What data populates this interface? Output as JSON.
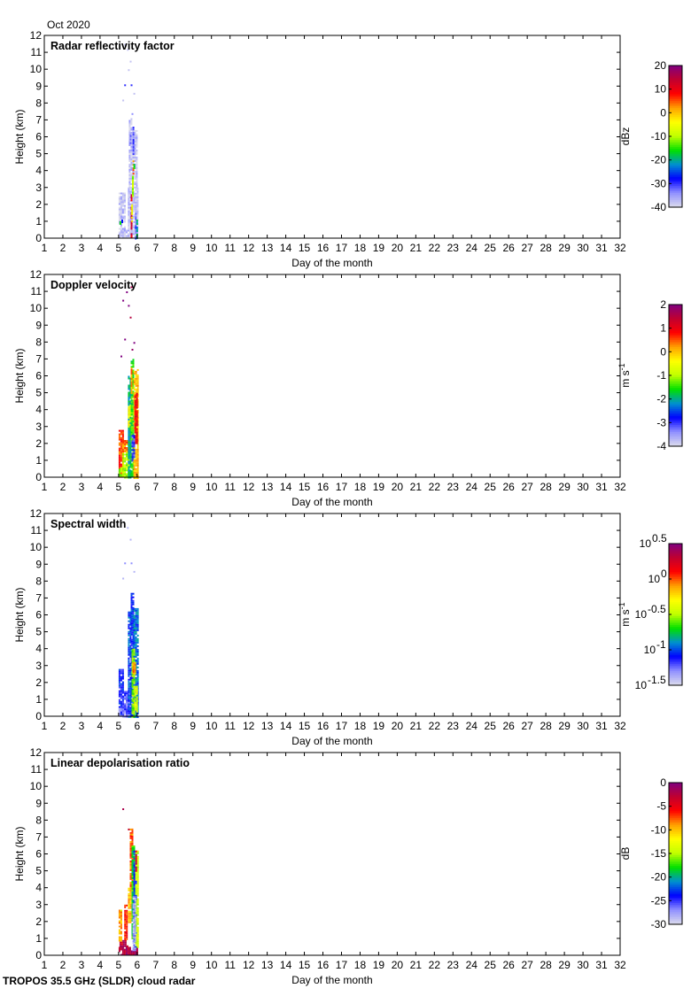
{
  "header": {
    "month": "Oct 2020"
  },
  "footer": {
    "instrument": "TROPOS 35.5 GHz (SLDR) cloud radar"
  },
  "colormap": [
    "#dcdcec",
    "#9090ff",
    "#0000ff",
    "#0090d0",
    "#00e000",
    "#c0ff00",
    "#ffff00",
    "#ffa000",
    "#ff0000",
    "#c00030",
    "#800080"
  ],
  "chart_data": [
    {
      "type": "heatmap",
      "title": "Radar reflectivity factor",
      "xlabel": "Day of the month",
      "ylabel": "Height (km)",
      "xlim": [
        1,
        32
      ],
      "ylim": [
        0,
        12
      ],
      "xticks": [
        "1",
        "2",
        "3",
        "4",
        "5",
        "6",
        "7",
        "8",
        "9",
        "10",
        "11",
        "12",
        "13",
        "14",
        "15",
        "16",
        "17",
        "18",
        "19",
        "20",
        "21",
        "22",
        "23",
        "24",
        "25",
        "26",
        "27",
        "28",
        "29",
        "30",
        "31",
        "32"
      ],
      "yticks": [
        "0",
        "1",
        "2",
        "3",
        "4",
        "5",
        "6",
        "7",
        "8",
        "9",
        "10",
        "11",
        "12"
      ],
      "colorbar": {
        "unit": "dBz",
        "unit_sup": "",
        "range": [
          -40,
          20
        ],
        "ticks": [
          {
            "v": 20,
            "label": "20"
          },
          {
            "v": 10,
            "label": "10"
          },
          {
            "v": 0,
            "label": "0"
          },
          {
            "v": -10,
            "label": "-10"
          },
          {
            "v": -20,
            "label": "-20"
          },
          {
            "v": -30,
            "label": "-30"
          },
          {
            "v": -40,
            "label": "-40"
          }
        ]
      },
      "cells": [
        [
          5.0,
          6.0,
          0,
          0.5,
          -38
        ],
        [
          5.0,
          5.3,
          0.5,
          2.7,
          -38
        ],
        [
          5.5,
          6.0,
          0.5,
          3.0,
          -38
        ],
        [
          5.55,
          6.0,
          3.0,
          6.4,
          -38
        ],
        [
          5.55,
          5.65,
          6.4,
          7.1,
          -38
        ],
        [
          5.65,
          5.7,
          0,
          2.6,
          12
        ],
        [
          5.68,
          5.74,
          1.0,
          2.0,
          -5
        ],
        [
          5.72,
          5.78,
          2.5,
          3.8,
          -10
        ],
        [
          5.75,
          5.8,
          3.8,
          4.6,
          3
        ],
        [
          5.8,
          5.85,
          4.0,
          4.4,
          -18
        ],
        [
          5.75,
          5.8,
          5.0,
          6.6,
          -32
        ],
        [
          5.6,
          5.65,
          5.6,
          6.2,
          -34
        ],
        [
          5.88,
          5.93,
          0,
          1.6,
          -32
        ],
        [
          5.95,
          6.0,
          0,
          1.1,
          -20
        ],
        [
          5.15,
          5.2,
          0.9,
          1.1,
          -30
        ],
        [
          5.05,
          5.1,
          0.8,
          1.0,
          -18
        ]
      ],
      "points": [
        [
          5.3,
          9.1,
          -30
        ],
        [
          5.65,
          9.1,
          -30
        ],
        [
          5.6,
          10.5,
          -38
        ],
        [
          5.2,
          8.2,
          -38
        ],
        [
          5.45,
          11.2,
          -38
        ],
        [
          5.7,
          7.4,
          -34
        ],
        [
          5.5,
          10.0,
          -38
        ],
        [
          5.8,
          8.6,
          -38
        ],
        [
          5.3,
          11.5,
          -38
        ]
      ]
    },
    {
      "type": "heatmap",
      "title": "Doppler velocity",
      "xlabel": "Day of the month",
      "ylabel": "Height (km)",
      "xlim": [
        1,
        32
      ],
      "ylim": [
        0,
        12
      ],
      "xticks": [
        "1",
        "2",
        "3",
        "4",
        "5",
        "6",
        "7",
        "8",
        "9",
        "10",
        "11",
        "12",
        "13",
        "14",
        "15",
        "16",
        "17",
        "18",
        "19",
        "20",
        "21",
        "22",
        "23",
        "24",
        "25",
        "26",
        "27",
        "28",
        "29",
        "30",
        "31",
        "32"
      ],
      "yticks": [
        "0",
        "1",
        "2",
        "3",
        "4",
        "5",
        "6",
        "7",
        "8",
        "9",
        "10",
        "11",
        "12"
      ],
      "colorbar": {
        "unit": "m s",
        "unit_sup": "-1",
        "range": [
          -4,
          2
        ],
        "ticks": [
          {
            "v": 2,
            "label": "2"
          },
          {
            "v": 1,
            "label": "1"
          },
          {
            "v": 0,
            "label": "0"
          },
          {
            "v": -1,
            "label": "-1"
          },
          {
            "v": -2,
            "label": "-2"
          },
          {
            "v": -3,
            "label": "-3"
          },
          {
            "v": -4,
            "label": "-4"
          }
        ]
      },
      "cells": [
        [
          5.0,
          5.2,
          0,
          2.8,
          0.6
        ],
        [
          5.0,
          5.2,
          0,
          0.6,
          -1.2
        ],
        [
          5.2,
          5.5,
          0,
          1.5,
          -1.0
        ],
        [
          5.2,
          5.5,
          1.5,
          2.2,
          0.3
        ],
        [
          5.5,
          5.65,
          0,
          6.0,
          -2.0
        ],
        [
          5.5,
          5.6,
          3.0,
          4.3,
          -0.5
        ],
        [
          5.65,
          5.8,
          0,
          7.0,
          -1.5
        ],
        [
          5.65,
          5.72,
          5.0,
          6.5,
          0.2
        ],
        [
          5.8,
          6.0,
          0,
          6.4,
          0.0
        ],
        [
          5.85,
          6.0,
          2.0,
          5.0,
          0.9
        ],
        [
          5.7,
          5.8,
          1.0,
          2.5,
          -3.0
        ]
      ],
      "points": [
        [
          5.2,
          10.5,
          2
        ],
        [
          5.4,
          11.0,
          2
        ],
        [
          5.6,
          9.5,
          1.5
        ],
        [
          5.3,
          8.2,
          2
        ],
        [
          5.7,
          7.6,
          1.8
        ],
        [
          5.5,
          10.2,
          2
        ],
        [
          5.8,
          8.0,
          2
        ],
        [
          5.65,
          11.3,
          1.6
        ],
        [
          5.1,
          7.2,
          2
        ]
      ]
    },
    {
      "type": "heatmap",
      "title": "Spectral width",
      "xlabel": "Day of the month",
      "ylabel": "Height (km)",
      "xlim": [
        1,
        32
      ],
      "ylim": [
        0,
        12
      ],
      "xticks": [
        "1",
        "2",
        "3",
        "4",
        "5",
        "6",
        "7",
        "8",
        "9",
        "10",
        "11",
        "12",
        "13",
        "14",
        "15",
        "16",
        "17",
        "18",
        "19",
        "20",
        "21",
        "22",
        "23",
        "24",
        "25",
        "26",
        "27",
        "28",
        "29",
        "30",
        "31",
        "32"
      ],
      "yticks": [
        "0",
        "1",
        "2",
        "3",
        "4",
        "5",
        "6",
        "7",
        "8",
        "9",
        "10",
        "11",
        "12"
      ],
      "colorbar": {
        "unit": "m s",
        "unit_sup": "-1",
        "range": [
          -1.5,
          0.5
        ],
        "log_base": "10",
        "ticks": [
          {
            "v": 0.5,
            "label": "10",
            "sup": "0.5"
          },
          {
            "v": 0,
            "label": "10",
            "sup": "0"
          },
          {
            "v": -0.5,
            "label": "10",
            "sup": "-0.5"
          },
          {
            "v": -1,
            "label": "10",
            "sup": "-1"
          },
          {
            "v": -1.5,
            "label": "10",
            "sup": "-1.5"
          }
        ]
      },
      "cells": [
        [
          5.0,
          5.2,
          0,
          2.8,
          -1.1
        ],
        [
          5.0,
          5.3,
          0,
          0.5,
          -1.4
        ],
        [
          5.2,
          5.5,
          0,
          1.5,
          -1.2
        ],
        [
          5.5,
          5.65,
          0,
          6.2,
          -1.0
        ],
        [
          5.65,
          5.8,
          0,
          7.3,
          -1.05
        ],
        [
          5.8,
          6.0,
          0,
          6.4,
          -0.95
        ],
        [
          5.7,
          5.85,
          0,
          4.0,
          -0.55
        ],
        [
          5.85,
          6.0,
          0.3,
          1.8,
          -0.4
        ],
        [
          5.75,
          5.85,
          2.5,
          3.2,
          -0.1
        ]
      ],
      "points": [
        [
          5.3,
          9.1,
          -1.3
        ],
        [
          5.65,
          9.1,
          -1.3
        ],
        [
          5.6,
          10.5,
          -1.4
        ],
        [
          5.2,
          8.2,
          -1.4
        ],
        [
          5.45,
          11.2,
          -1.4
        ],
        [
          5.8,
          8.6,
          -1.4
        ]
      ]
    },
    {
      "type": "heatmap",
      "title": "Linear depolarisation ratio",
      "xlabel": "Day of the month",
      "ylabel": "Height (km)",
      "xlim": [
        1,
        32
      ],
      "ylim": [
        0,
        12
      ],
      "xticks": [
        "1",
        "2",
        "3",
        "4",
        "5",
        "6",
        "7",
        "8",
        "9",
        "10",
        "11",
        "12",
        "13",
        "14",
        "15",
        "16",
        "17",
        "18",
        "19",
        "20",
        "21",
        "22",
        "23",
        "24",
        "25",
        "26",
        "27",
        "28",
        "29",
        "30",
        "31",
        "32"
      ],
      "yticks": [
        "0",
        "1",
        "2",
        "3",
        "4",
        "5",
        "6",
        "7",
        "8",
        "9",
        "10",
        "11",
        "12"
      ],
      "colorbar": {
        "unit": "dB",
        "unit_sup": "",
        "range": [
          -30,
          0
        ],
        "ticks": [
          {
            "v": 0,
            "label": "0"
          },
          {
            "v": -5,
            "label": "-5"
          },
          {
            "v": -10,
            "label": "-10"
          },
          {
            "v": -15,
            "label": "-15"
          },
          {
            "v": -20,
            "label": "-20"
          },
          {
            "v": -25,
            "label": "-25"
          },
          {
            "v": -30,
            "label": "-30"
          }
        ]
      },
      "cells": [
        [
          5.0,
          6.0,
          0,
          0.5,
          -2
        ],
        [
          5.05,
          5.5,
          0.5,
          0.9,
          -3
        ],
        [
          5.0,
          5.15,
          0.9,
          2.7,
          -9
        ],
        [
          5.3,
          5.45,
          1.0,
          3.0,
          -6
        ],
        [
          5.5,
          5.65,
          2.0,
          4.0,
          -10
        ],
        [
          5.6,
          5.75,
          4.0,
          7.5,
          -8
        ],
        [
          5.7,
          5.8,
          1.0,
          6.5,
          -18
        ],
        [
          5.8,
          5.9,
          0.5,
          6.2,
          -23
        ],
        [
          5.9,
          6.0,
          0.5,
          6.2,
          -14
        ],
        [
          5.75,
          5.85,
          0.3,
          3.5,
          -28
        ],
        [
          5.9,
          5.95,
          5.0,
          6.2,
          -4
        ]
      ],
      "points": [
        [
          5.2,
          8.7,
          -2
        ],
        [
          5.5,
          7.5,
          -3
        ],
        [
          5.6,
          7.1,
          -6
        ],
        [
          5.1,
          2.7,
          -14
        ],
        [
          5.35,
          1.4,
          -4
        ]
      ]
    }
  ]
}
